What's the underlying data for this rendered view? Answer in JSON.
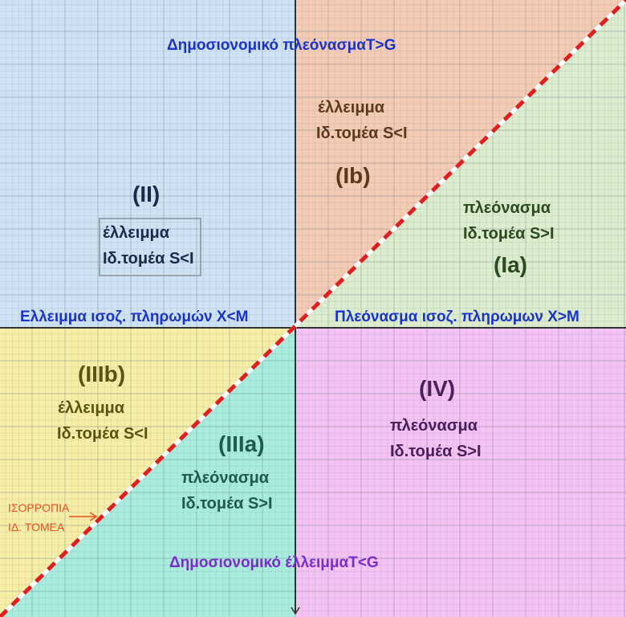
{
  "colors": {
    "quadrant_II": "#cfe2f3",
    "quadrant_Ib": "#f4cbb4",
    "quadrant_Ia": "#dcecce",
    "quadrant_IIIb": "#f6eda6",
    "quadrant_IIIa": "#a9ecdd",
    "quadrant_IV": "#f4c2f3",
    "axis_label_blue": "#1a33cc",
    "axis_label_purple": "#7a2dc8",
    "region_text_brown": "#5a3a1a",
    "region_text_green": "#2b4a1f",
    "region_text_olive": "#5a5412",
    "region_text_teal": "#1f5a4c",
    "region_text_violet": "#4a1f5a",
    "region_text_navy": "#1a2a4a",
    "equilibrium_line": "#e02020",
    "equilibrium_label": "#e85020"
  },
  "axis_labels": {
    "top": "Δημοσιονομικό πλεόνασμαT>G",
    "bottom": "Δημοσιονομικό έλλειμμαT<G",
    "left": "Ελλειμμα ισοζ. πληρωμών X<M",
    "right": "Πλεόνασμα ισοζ. πληρωμων X>M"
  },
  "regions": {
    "II": {
      "numeral": "(II)",
      "line1": "έλλειμμα",
      "line2": "Ιδ.τομέα S<I"
    },
    "Ib": {
      "numeral": "(Ib)",
      "line1": "έλλειμμα",
      "line2": "Ιδ.τομέα S<I"
    },
    "Ia": {
      "numeral": "(Ia)",
      "line1": "πλεόνασμα",
      "line2": "Ιδ.τομέα S>I"
    },
    "IIIb": {
      "numeral": "(IIIb)",
      "line1": "έλλειμμα",
      "line2": "Ιδ.τομέα S<I"
    },
    "IIIa": {
      "numeral": "(IIIa)",
      "line1": "πλεόνασμα",
      "line2": "Ιδ.τομέα S>I"
    },
    "IV": {
      "numeral": "(IV)",
      "line1": "πλεόνασμα",
      "line2": "Ιδ.τομέα S>I"
    }
  },
  "equilibrium": {
    "line1": "ΙΣΟΡΡΟΠΙΑ",
    "line2": "ΙΔ. ΤΟΜΕΑ"
  },
  "grid": true,
  "diagonal_style": "dashed"
}
